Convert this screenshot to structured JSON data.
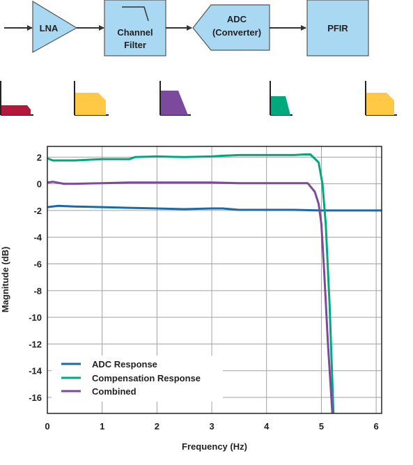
{
  "blocks": {
    "lna": {
      "label": "LNA"
    },
    "channel_filter": {
      "line1": "Channel",
      "line2": "Filter"
    },
    "adc": {
      "line1": "ADC",
      "line2": "(Converter)"
    },
    "pfir": {
      "label": "PFIR"
    }
  },
  "colors": {
    "block_fill": "#a9d8f2",
    "block_stroke": "#555555",
    "arrow": "#333333",
    "grid": "#a0a0a0",
    "spectrum_red": "#b3173c",
    "spectrum_yellow": "#ffc845",
    "spectrum_purple": "#7c4a9c",
    "spectrum_green": "#00a87e"
  },
  "spectra": [
    {
      "id": "lna",
      "color": "#b3173c",
      "shape": "lowpass-wide"
    },
    {
      "id": "channel-filter",
      "color": "#ffc845",
      "shape": "lowpass-rounded"
    },
    {
      "id": "adc",
      "color": "#7c4a9c",
      "shape": "lowpass-sloped"
    },
    {
      "id": "pfir",
      "color": "#00a87e",
      "shape": "lowpass-narrow"
    },
    {
      "id": "output",
      "color": "#ffc845",
      "shape": "lowpass-rounded"
    }
  ],
  "chart_data": {
    "type": "line",
    "xlabel": "Frequency (Hz)",
    "ylabel": "Magnitude (dB)",
    "xlim": [
      0,
      6.1
    ],
    "ylim": [
      -17.2,
      2.8
    ],
    "xticks": [
      0,
      1,
      2,
      3,
      4,
      5,
      6
    ],
    "yticks": [
      2,
      0,
      -2,
      -4,
      -6,
      -8,
      -10,
      -12,
      -14,
      -16
    ],
    "grid": true,
    "legend_position": "bottom-left",
    "series": [
      {
        "name": "ADC Response",
        "color": "#1a6aa8",
        "x": [
          0,
          0.2,
          0.5,
          1.0,
          1.5,
          2.0,
          2.5,
          3.0,
          3.2,
          3.5,
          4.0,
          4.5,
          5.0,
          5.5,
          6.1
        ],
        "y": [
          -1.75,
          -1.65,
          -1.7,
          -1.75,
          -1.8,
          -1.85,
          -1.9,
          -1.85,
          -1.85,
          -1.95,
          -1.95,
          -1.95,
          -2.0,
          -2.0,
          -2.0
        ]
      },
      {
        "name": "Compensation Response",
        "color": "#00a87e",
        "x": [
          0,
          0.1,
          0.5,
          1.0,
          1.5,
          1.6,
          2.0,
          2.5,
          3.0,
          3.2,
          3.5,
          4.0,
          4.5,
          4.7,
          4.8,
          4.95,
          5.02,
          5.08,
          5.15,
          5.22
        ],
        "y": [
          1.9,
          1.75,
          1.75,
          1.85,
          1.85,
          2.0,
          2.05,
          2.0,
          2.05,
          2.1,
          2.15,
          2.15,
          2.15,
          2.2,
          2.2,
          1.6,
          0.0,
          -3.0,
          -9.0,
          -17.2
        ]
      },
      {
        "name": "Combined",
        "color": "#7c4a9c",
        "x": [
          0,
          0.1,
          0.3,
          0.5,
          1.0,
          1.5,
          2.0,
          2.5,
          3.0,
          3.5,
          4.0,
          4.5,
          4.75,
          4.88,
          4.95,
          5.0,
          5.05,
          5.12,
          5.2
        ],
        "y": [
          0.1,
          0.15,
          0.0,
          0.0,
          0.05,
          0.1,
          0.1,
          0.1,
          0.1,
          0.05,
          0.05,
          0.05,
          0.05,
          -0.6,
          -1.5,
          -3.0,
          -6.5,
          -12.0,
          -17.2
        ]
      }
    ]
  }
}
